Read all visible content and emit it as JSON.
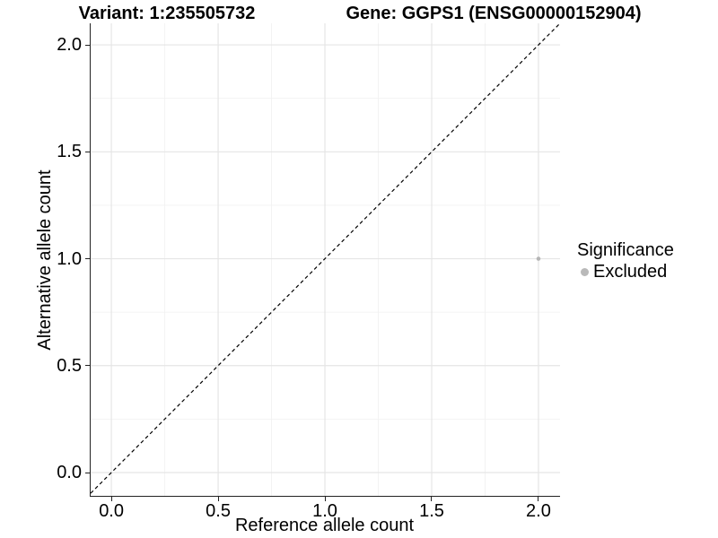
{
  "chart_data": {
    "type": "scatter",
    "title_left": "Variant: 1:235505732",
    "title_right": "Gene: GGPS1 (ENSG00000152904)",
    "xlabel": "Reference allele count",
    "ylabel": "Alternative allele count",
    "x_ticks": [
      0,
      0.5,
      1,
      1.5,
      2
    ],
    "x_tick_labels": [
      "0.0",
      "0.5",
      "1.0",
      "1.5",
      "2.0"
    ],
    "y_ticks": [
      0,
      0.5,
      1,
      1.5,
      2
    ],
    "y_tick_labels": [
      "0.0",
      "0.5",
      "1.0",
      "1.5",
      "2.0"
    ],
    "x_minor_ticks": [
      0.25,
      0.75,
      1.25,
      1.75
    ],
    "y_minor_ticks": [
      0.25,
      0.75,
      1.25,
      1.75
    ],
    "xlim": [
      -0.097,
      2.101
    ],
    "ylim": [
      -0.109,
      2.101
    ],
    "grid": "major+minor",
    "legend_position": "right",
    "identity_line": {
      "style": "dashed",
      "color": "#000000"
    },
    "series": [
      {
        "name": "Excluded",
        "color": "#b5b5b5",
        "point_radius": 2.3,
        "points": [
          {
            "x": 2,
            "y": 1
          }
        ]
      }
    ],
    "legend": {
      "title": "Significance",
      "items": [
        {
          "label": "Excluded",
          "color": "#b9b9b9"
        }
      ]
    },
    "colors": {
      "grid_major": "#e5e5e5",
      "grid_minor": "#f2f2f2",
      "axis": "#222222",
      "text": "#000000",
      "background": "#ffffff"
    }
  }
}
